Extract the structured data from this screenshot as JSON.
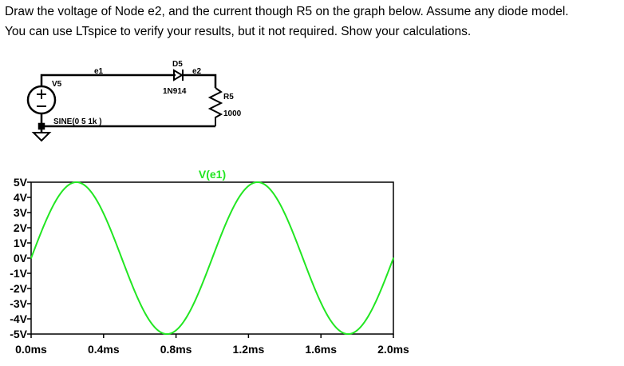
{
  "question": {
    "line1": "Draw the voltage of Node e2, and the current though R5 on the graph below.  Assume any diode model.",
    "line2": "You can use LTspice to verify your results, but it not required. Show your calculations."
  },
  "schematic": {
    "node1": "e1",
    "node2": "e2",
    "source_name": "V5",
    "source_value": "SINE(0 5 1k  )",
    "diode_name": "D5",
    "diode_model": "1N914",
    "resistor_name": "R5",
    "resistor_value": "1000"
  },
  "chart_data": {
    "type": "line",
    "title": "V(e1)",
    "xlabel": "",
    "ylabel": "",
    "xlim": [
      0,
      2.0
    ],
    "ylim": [
      -5,
      5
    ],
    "grid": false,
    "x_ticks": [
      "0.0ms",
      "0.4ms",
      "0.8ms",
      "1.2ms",
      "1.6ms",
      "2.0ms"
    ],
    "y_ticks": [
      "5V",
      "4V",
      "3V",
      "2V",
      "1V",
      "0V",
      "-1V",
      "-2V",
      "-3V",
      "-4V",
      "-5V"
    ],
    "series": [
      {
        "name": "V(e1)",
        "color": "#22e622",
        "x": [
          0,
          0.05,
          0.1,
          0.15,
          0.2,
          0.25,
          0.3,
          0.35,
          0.4,
          0.45,
          0.5,
          0.55,
          0.6,
          0.65,
          0.7,
          0.75,
          0.8,
          0.85,
          0.9,
          0.95,
          1.0,
          1.05,
          1.1,
          1.15,
          1.2,
          1.25,
          1.3,
          1.35,
          1.4,
          1.45,
          1.5,
          1.55,
          1.6,
          1.65,
          1.7,
          1.75,
          1.8,
          1.85,
          1.9,
          1.95,
          2.0
        ],
        "y": [
          0,
          1.55,
          2.94,
          4.05,
          4.76,
          5,
          4.76,
          4.05,
          2.94,
          1.55,
          0,
          -1.55,
          -2.94,
          -4.05,
          -4.76,
          -5,
          -4.76,
          -4.05,
          -2.94,
          -1.55,
          0,
          1.55,
          2.94,
          4.05,
          4.76,
          5,
          4.76,
          4.05,
          2.94,
          1.55,
          0,
          -1.55,
          -2.94,
          -4.05,
          -4.76,
          -5,
          -4.76,
          -4.05,
          -2.94,
          -1.55,
          0
        ]
      }
    ]
  }
}
